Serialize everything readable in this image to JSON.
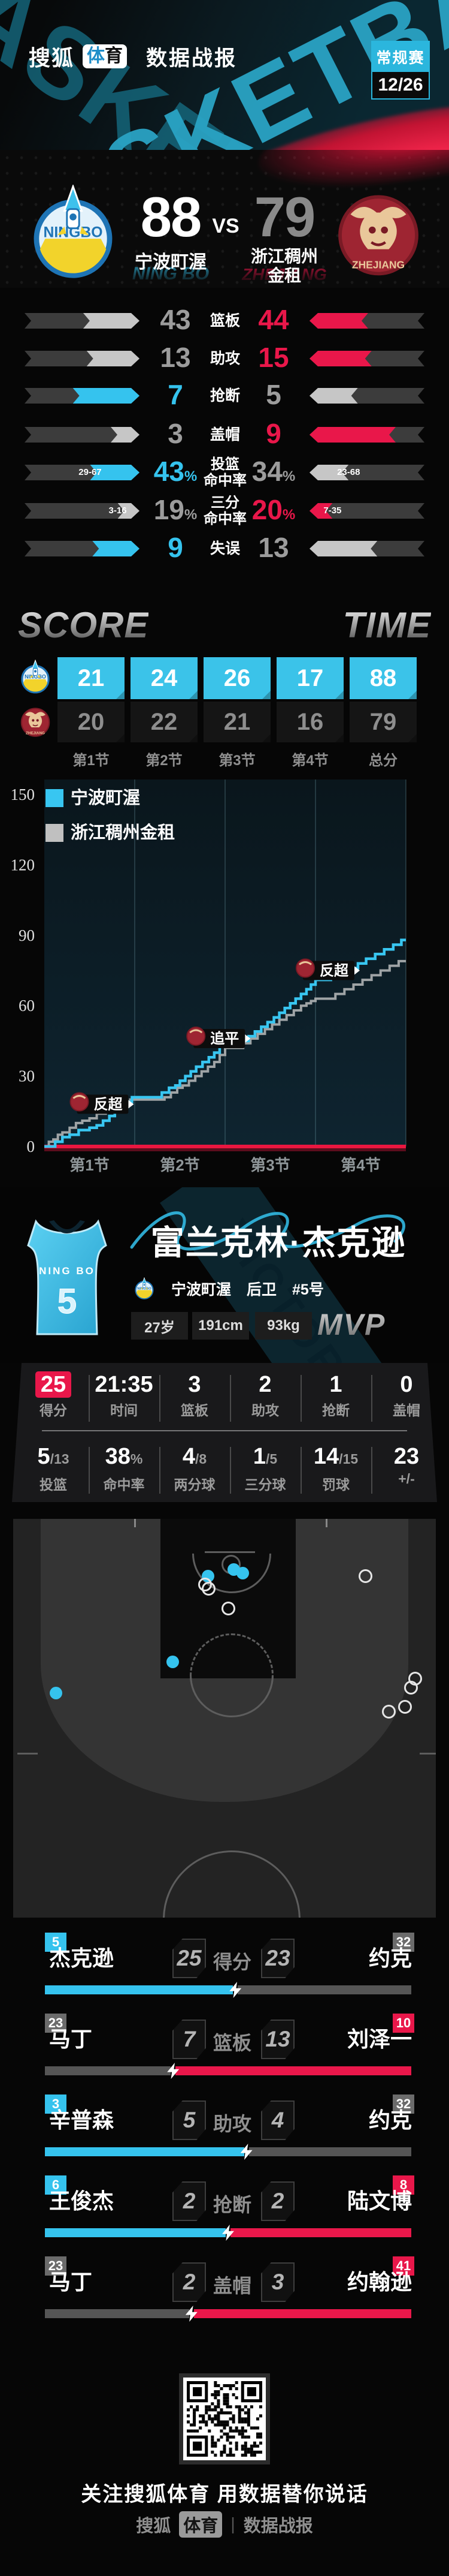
{
  "colors": {
    "cyan": "#35c3ee",
    "red": "#e9174a",
    "gray_fill": "#c6c6c6",
    "track": "#3c3c3c",
    "loser_text": "#9c9c9c",
    "cyan_cell": "#3bc3e9",
    "dark_cell": "#151515"
  },
  "header": {
    "brand": "搜狐",
    "badge_blue": "体",
    "badge_dark": "育",
    "title": "数据战报",
    "stage": "常规赛",
    "date": "12/26",
    "bg_word": "BASKETBALL"
  },
  "scoreboard": {
    "vs": "VS",
    "home": {
      "name": "宁波町渥",
      "sub": "NING BO",
      "score": "88",
      "logo": "NINGBO"
    },
    "away": {
      "name_line1": "浙江稠州",
      "name_line2": "金租",
      "sub": "ZHEJIANG",
      "score": "79",
      "logo": "ZHEJIANG"
    }
  },
  "team_stats": {
    "rows": [
      {
        "label": [
          "篮板"
        ],
        "left": "43",
        "lsfx": "",
        "right": "44",
        "rsfx": "",
        "lpct": 49,
        "rpct": 51,
        "winner": "right",
        "lnote": "",
        "rnote": ""
      },
      {
        "label": [
          "助攻"
        ],
        "left": "13",
        "lsfx": "",
        "right": "15",
        "rsfx": "",
        "lpct": 46,
        "rpct": 54,
        "winner": "right",
        "lnote": "",
        "rnote": ""
      },
      {
        "label": [
          "抢断"
        ],
        "left": "7",
        "lsfx": "",
        "right": "5",
        "rsfx": "",
        "lpct": 58,
        "rpct": 42,
        "winner": "left",
        "lnote": "",
        "rnote": ""
      },
      {
        "label": [
          "盖帽"
        ],
        "left": "3",
        "lsfx": "",
        "right": "9",
        "rsfx": "",
        "lpct": 25,
        "rpct": 75,
        "winner": "right",
        "lnote": "",
        "rnote": ""
      },
      {
        "label": [
          "投篮",
          "命中率"
        ],
        "left": "43",
        "lsfx": "%",
        "right": "34",
        "rsfx": "%",
        "lpct": 43,
        "rpct": 34,
        "winner": "left",
        "lnote": "29-67",
        "rnote": "23-68"
      },
      {
        "label": [
          "三分",
          "命中率"
        ],
        "left": "19",
        "lsfx": "%",
        "right": "20",
        "rsfx": "%",
        "lpct": 19,
        "rpct": 20,
        "winner": "right",
        "lnote": "3-16",
        "rnote": "7-35"
      },
      {
        "label": [
          "失误"
        ],
        "left": "9",
        "lsfx": "",
        "right": "13",
        "rsfx": "",
        "lpct": 41,
        "rpct": 59,
        "winner": "left",
        "lnote": "",
        "rnote": ""
      }
    ]
  },
  "score_table": {
    "title_left": "SCORE",
    "title_right": "TIME",
    "columns": [
      "第1节",
      "第2节",
      "第3节",
      "第4节",
      "总分"
    ],
    "rows": [
      {
        "team": "ningbo",
        "values": [
          "21",
          "24",
          "26",
          "17",
          "88"
        ]
      },
      {
        "team": "zhejiang",
        "values": [
          "20",
          "22",
          "21",
          "16",
          "79"
        ]
      }
    ]
  },
  "chart_data": {
    "type": "line",
    "subtype": "step-cumulative-score",
    "x_categories": [
      "第1节",
      "第2节",
      "第3节",
      "第4节"
    ],
    "ylim": [
      0,
      150
    ],
    "yticks": [
      0,
      30,
      60,
      90,
      120,
      150
    ],
    "grid": "vertical-quarter-lines",
    "legend_position": "top-left",
    "baseline_color": "#ea1740",
    "series": [
      {
        "name": "宁波町渥",
        "color": "#38c6f1",
        "final": 88,
        "quarters": [
          21,
          45,
          71,
          88
        ],
        "points": [
          [
            0,
            0
          ],
          [
            0.08,
            0
          ],
          [
            0.12,
            2
          ],
          [
            0.2,
            4
          ],
          [
            0.28,
            5
          ],
          [
            0.38,
            7
          ],
          [
            0.5,
            8
          ],
          [
            0.58,
            9
          ],
          [
            0.65,
            11
          ],
          [
            0.72,
            13
          ],
          [
            0.78,
            15
          ],
          [
            0.85,
            17
          ],
          [
            0.92,
            19
          ],
          [
            0.97,
            21
          ],
          [
            1.25,
            21
          ],
          [
            1.3,
            23
          ],
          [
            1.38,
            25
          ],
          [
            1.45,
            26
          ],
          [
            1.5,
            28
          ],
          [
            1.56,
            30
          ],
          [
            1.62,
            32
          ],
          [
            1.68,
            34
          ],
          [
            1.75,
            36
          ],
          [
            1.82,
            38
          ],
          [
            1.88,
            40
          ],
          [
            1.94,
            43
          ],
          [
            2,
            45
          ],
          [
            2.2,
            45
          ],
          [
            2.26,
            47
          ],
          [
            2.33,
            49
          ],
          [
            2.4,
            51
          ],
          [
            2.47,
            53
          ],
          [
            2.54,
            55
          ],
          [
            2.6,
            57
          ],
          [
            2.66,
            59
          ],
          [
            2.72,
            61
          ],
          [
            2.78,
            63
          ],
          [
            2.84,
            65
          ],
          [
            2.9,
            67
          ],
          [
            2.95,
            69
          ],
          [
            3,
            71
          ],
          [
            3.08,
            71
          ],
          [
            3.17,
            72
          ],
          [
            3.27,
            74
          ],
          [
            3.37,
            76
          ],
          [
            3.47,
            78
          ],
          [
            3.56,
            80
          ],
          [
            3.66,
            82
          ],
          [
            3.76,
            84
          ],
          [
            3.86,
            86
          ],
          [
            3.95,
            88
          ],
          [
            4,
            88
          ]
        ]
      },
      {
        "name": "浙江稠州金租",
        "color": "#9fa4a6",
        "final": 79,
        "quarters": [
          20,
          42,
          63,
          79
        ],
        "points": [
          [
            0,
            0
          ],
          [
            0.05,
            2
          ],
          [
            0.1,
            3
          ],
          [
            0.15,
            5
          ],
          [
            0.2,
            6
          ],
          [
            0.28,
            8
          ],
          [
            0.35,
            10
          ],
          [
            0.42,
            11
          ],
          [
            0.5,
            12
          ],
          [
            0.58,
            14
          ],
          [
            0.68,
            15
          ],
          [
            0.78,
            16
          ],
          [
            0.85,
            17
          ],
          [
            0.9,
            18
          ],
          [
            0.95,
            20
          ],
          [
            1.28,
            20
          ],
          [
            1.33,
            21
          ],
          [
            1.4,
            23
          ],
          [
            1.47,
            25
          ],
          [
            1.53,
            26
          ],
          [
            1.6,
            28
          ],
          [
            1.67,
            30
          ],
          [
            1.74,
            32
          ],
          [
            1.81,
            34
          ],
          [
            1.88,
            36
          ],
          [
            1.94,
            39
          ],
          [
            2,
            42
          ],
          [
            2.12,
            42
          ],
          [
            2.2,
            44
          ],
          [
            2.28,
            46
          ],
          [
            2.36,
            48
          ],
          [
            2.44,
            50
          ],
          [
            2.52,
            52
          ],
          [
            2.6,
            54
          ],
          [
            2.68,
            56
          ],
          [
            2.76,
            58
          ],
          [
            2.84,
            60
          ],
          [
            2.9,
            61
          ],
          [
            2.95,
            62
          ],
          [
            3,
            63
          ],
          [
            3.12,
            63
          ],
          [
            3.22,
            65
          ],
          [
            3.32,
            67
          ],
          [
            3.42,
            69
          ],
          [
            3.52,
            71
          ],
          [
            3.62,
            73
          ],
          [
            3.72,
            75
          ],
          [
            3.82,
            77
          ],
          [
            3.92,
            79
          ],
          [
            4,
            79
          ]
        ]
      }
    ],
    "annotations": [
      {
        "text": "反超",
        "team": "zhejiang",
        "t": 0.97,
        "score": 18
      },
      {
        "text": "追平",
        "team": "zhejiang",
        "t": 2.26,
        "score": 46
      },
      {
        "text": "反超",
        "team": "zhejiang",
        "t": 3.47,
        "score": 75
      }
    ]
  },
  "player": {
    "name": "富兰克林·杰克逊",
    "team": "宁波町渥",
    "position": "后卫",
    "number": "#5号",
    "jersey_number": "5",
    "jersey_team": "NING BO",
    "age": "27岁",
    "height": "191cm",
    "weight": "93kg",
    "mvp": "MVP",
    "bg_word": "VICTORY",
    "stats_row1": [
      {
        "v": "25",
        "sub": "",
        "l": "得分",
        "hl": true
      },
      {
        "v": "21:35",
        "sub": "",
        "l": "时间"
      },
      {
        "v": "3",
        "sub": "",
        "l": "篮板"
      },
      {
        "v": "2",
        "sub": "",
        "l": "助攻"
      },
      {
        "v": "1",
        "sub": "",
        "l": "抢断"
      },
      {
        "v": "0",
        "sub": "",
        "l": "盖帽"
      }
    ],
    "stats_row2": [
      {
        "v": "5",
        "sub": "/13",
        "l": "投篮"
      },
      {
        "v": "38",
        "sub": "%",
        "l": "命中率"
      },
      {
        "v": "4",
        "sub": "/8",
        "l": "两分球"
      },
      {
        "v": "1",
        "sub": "/5",
        "l": "三分球"
      },
      {
        "v": "14",
        "sub": "/15",
        "l": "罚球"
      },
      {
        "v": "23",
        "sub": "",
        "l": "+/-"
      }
    ]
  },
  "shot_chart": {
    "made": [
      [
        368,
        84
      ],
      [
        383,
        90
      ],
      [
        325,
        95
      ],
      [
        266,
        238
      ],
      [
        71,
        290
      ]
    ],
    "missed": [
      [
        319,
        108
      ],
      [
        325,
        115
      ],
      [
        358,
        148
      ],
      [
        587,
        94
      ],
      [
        670,
        265
      ],
      [
        663,
        280
      ],
      [
        653,
        312
      ],
      [
        626,
        320
      ]
    ]
  },
  "comparisons": {
    "rows": [
      {
        "label": "得分",
        "lname": "杰克逊",
        "lbadge": "5",
        "lcolor": "cyan",
        "lval": "25",
        "rval": "23",
        "rname": "约克",
        "rbadge": "32",
        "rcolor": "gray",
        "split": 52,
        "lbar": "cyan",
        "rbar": "gray"
      },
      {
        "label": "篮板",
        "lname": "马丁",
        "lbadge": "23",
        "lcolor": "gray",
        "lval": "7",
        "rval": "13",
        "rname": "刘泽一",
        "rbadge": "10",
        "rcolor": "red",
        "split": 35,
        "lbar": "gray",
        "rbar": "red"
      },
      {
        "label": "助攻",
        "lname": "辛普森",
        "lbadge": "3",
        "lcolor": "cyan",
        "lval": "5",
        "rval": "4",
        "rname": "约克",
        "rbadge": "32",
        "rcolor": "gray",
        "split": 55,
        "lbar": "cyan",
        "rbar": "gray"
      },
      {
        "label": "抢断",
        "lname": "王俊杰",
        "lbadge": "6",
        "lcolor": "cyan",
        "lval": "2",
        "rval": "2",
        "rname": "陆文博",
        "rbadge": "8",
        "rcolor": "red",
        "split": 50,
        "lbar": "cyan",
        "rbar": "red"
      },
      {
        "label": "盖帽",
        "lname": "马丁",
        "lbadge": "23",
        "lcolor": "gray",
        "lval": "2",
        "rval": "3",
        "rname": "约翰逊",
        "rbadge": "41",
        "rcolor": "red",
        "split": 40,
        "lbar": "gray",
        "rbar": "red"
      }
    ]
  },
  "footer": {
    "slogan": "关注搜狐体育 用数据替你说话",
    "brand": "搜狐",
    "badge": "体育",
    "divider": "|",
    "title": "数据战报"
  }
}
